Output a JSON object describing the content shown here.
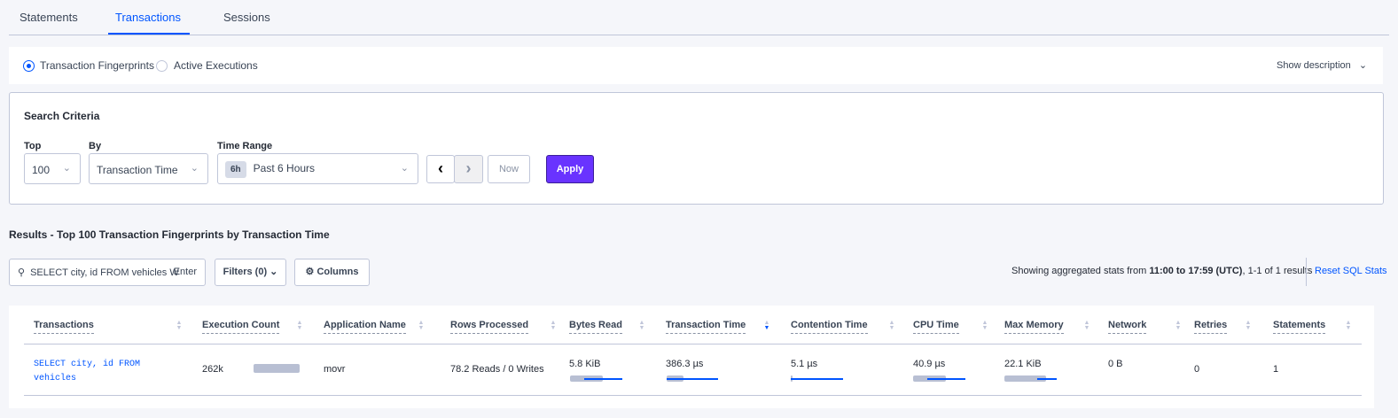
{
  "tabs": [
    "Statements",
    "Transactions",
    "Sessions"
  ],
  "active_tab": "Transactions",
  "view_options": {
    "fingerprints": "Transaction Fingerprints",
    "active": "Active Executions",
    "selected": "Transaction Fingerprints",
    "show_description": "Show description"
  },
  "search_criteria": {
    "title": "Search Criteria",
    "top_label": "Top",
    "top_value": "100",
    "by_label": "By",
    "by_value": "Transaction Time",
    "time_range_label": "Time Range",
    "time_badge": "6h",
    "time_value": "Past 6 Hours",
    "now_label": "Now",
    "apply_label": "Apply"
  },
  "results": {
    "title": "Results - Top 100 Transaction Fingerprints by Transaction Time",
    "search_value": "SELECT city, id FROM vehicles W",
    "enter_label": "Enter",
    "filters_label": "Filters (0)",
    "columns_label": "Columns",
    "stats_prefix": "Showing aggregated stats from ",
    "stats_range": "11:00 to 17:59 (UTC)",
    "stats_suffix": ", 1-1 of 1 results",
    "reset_label": "Reset SQL Stats"
  },
  "table": {
    "headers": [
      "Transactions",
      "Execution Count",
      "Application Name",
      "Rows Processed",
      "Bytes Read",
      "Transaction Time",
      "Contention Time",
      "CPU Time",
      "Max Memory",
      "Network",
      "Retries",
      "Statements"
    ],
    "sorted_column": "Transaction Time",
    "rows": [
      {
        "transaction": "SELECT city, id FROM vehicles",
        "execution_count": "262k",
        "application": "movr",
        "rows_processed": "78.2 Reads / 0 Writes",
        "bytes_read": "5.8 KiB",
        "transaction_time": "386.3 µs",
        "contention_time": "5.1 µs",
        "cpu_time": "40.9 µs",
        "max_memory": "22.1 KiB",
        "network": "0 B",
        "retries": "0",
        "statements": "1"
      }
    ]
  },
  "colors": {
    "accent": "#0055ff",
    "apply": "#6933ff",
    "bar": "#b8bfd3"
  }
}
